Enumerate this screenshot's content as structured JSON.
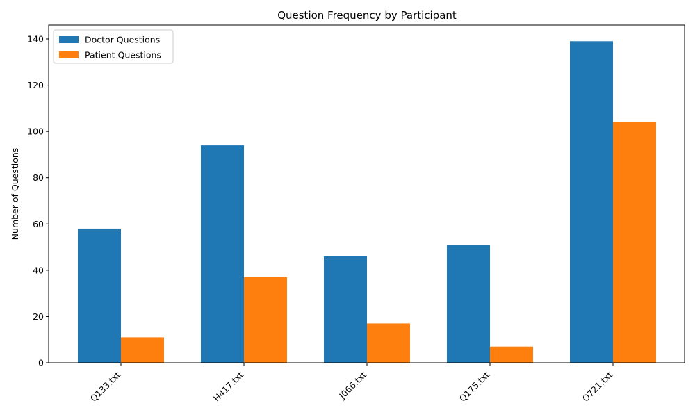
{
  "chart_data": {
    "type": "bar",
    "title": "Question Frequency by Participant",
    "xlabel": "",
    "ylabel": "Number of Questions",
    "categories": [
      "Q133.txt",
      "H417.txt",
      "J066.txt",
      "Q175.txt",
      "O721.txt"
    ],
    "series": [
      {
        "name": "Doctor Questions",
        "values": [
          58,
          94,
          46,
          51,
          139
        ],
        "color": "#1f77b4"
      },
      {
        "name": "Patient Questions",
        "values": [
          11,
          37,
          17,
          7,
          104
        ],
        "color": "#ff7f0e"
      }
    ],
    "ylim": [
      0,
      146
    ],
    "yticks": [
      0,
      20,
      40,
      60,
      80,
      100,
      120,
      140
    ],
    "grid": false,
    "legend_position": "top-left"
  }
}
